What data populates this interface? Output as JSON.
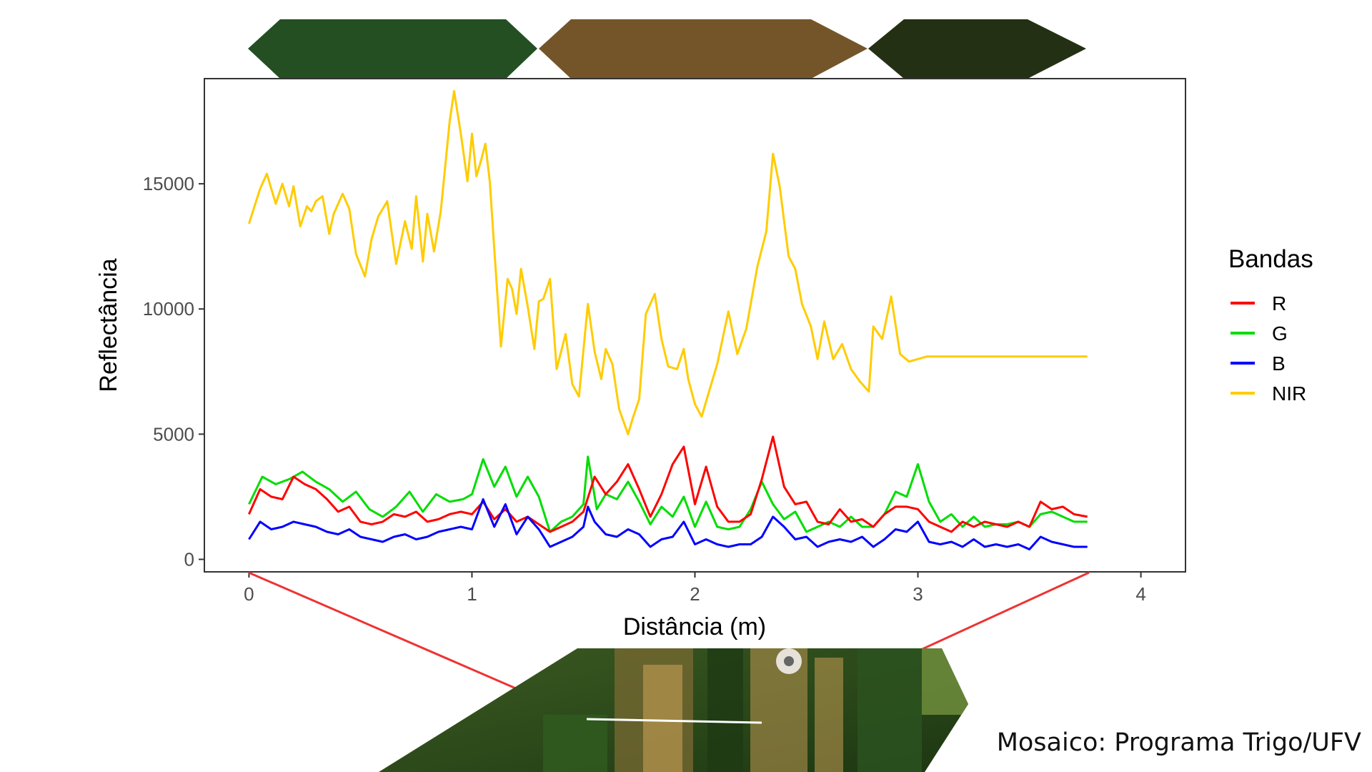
{
  "chart_data": {
    "type": "line",
    "title": "",
    "xlabel": "Distância (m)",
    "ylabel": "Reflectância",
    "xlim": [
      -0.2,
      4.2
    ],
    "ylim": [
      -500,
      19200
    ],
    "x_ticks": [
      0,
      1,
      2,
      3,
      4
    ],
    "y_ticks": [
      0,
      5000,
      10000,
      15000
    ],
    "grid": false,
    "legend": {
      "title": "Bandas",
      "placement": "right"
    },
    "colors": {
      "R": "#ff0000",
      "G": "#00dd00",
      "B": "#0000ff",
      "NIR": "#ffcc00"
    },
    "series": [
      {
        "name": "NIR",
        "x": [
          0,
          0.05,
          0.08,
          0.12,
          0.15,
          0.18,
          0.2,
          0.23,
          0.26,
          0.28,
          0.3,
          0.33,
          0.36,
          0.38,
          0.42,
          0.45,
          0.48,
          0.52,
          0.55,
          0.58,
          0.62,
          0.66,
          0.7,
          0.73,
          0.75,
          0.78,
          0.8,
          0.83,
          0.86,
          0.9,
          0.92,
          0.95,
          0.98,
          1.0,
          1.02,
          1.04,
          1.06,
          1.08,
          1.1,
          1.13,
          1.16,
          1.18,
          1.2,
          1.22,
          1.25,
          1.28,
          1.3,
          1.32,
          1.35,
          1.38,
          1.42,
          1.45,
          1.48,
          1.52,
          1.55,
          1.58,
          1.6,
          1.63,
          1.66,
          1.7,
          1.72,
          1.75,
          1.78,
          1.82,
          1.85,
          1.88,
          1.92,
          1.95,
          1.97,
          2.0,
          2.03,
          2.06,
          2.1,
          2.15,
          2.19,
          2.23,
          2.28,
          2.32,
          2.35,
          2.38,
          2.42,
          2.45,
          2.48,
          2.52,
          2.55,
          2.58,
          2.62,
          2.66,
          2.7,
          2.74,
          2.78,
          2.8,
          2.84,
          2.88,
          2.92,
          2.96,
          3.0,
          3.04,
          3.08,
          3.12,
          3.16,
          3.2,
          3.24,
          3.28,
          3.32,
          3.36,
          3.4,
          3.44,
          3.48,
          3.52,
          3.56,
          3.6,
          3.64,
          3.68,
          3.72,
          3.76
        ],
        "values": [
          13400,
          14800,
          15400,
          14200,
          15000,
          14100,
          14900,
          13300,
          14100,
          13900,
          14300,
          14500,
          13000,
          13800,
          14600,
          14000,
          12200,
          11300,
          12800,
          13700,
          14300,
          11800,
          13500,
          12400,
          14500,
          11900,
          13800,
          12300,
          13900,
          17500,
          18700,
          17000,
          15100,
          17000,
          15300,
          15900,
          16600,
          15100,
          12400,
          8500,
          11200,
          10800,
          9800,
          11600,
          10100,
          8400,
          10300,
          10400,
          11200,
          7600,
          9000,
          7000,
          6500,
          10200,
          8300,
          7200,
          8400,
          7800,
          6000,
          5000,
          5600,
          6400,
          9800,
          10600,
          8800,
          7700,
          7600,
          8400,
          7200,
          6200,
          5700,
          6600,
          7800,
          9900,
          8200,
          9200,
          11700,
          13100,
          16200,
          14900,
          12100,
          11600,
          10200,
          9300,
          8000,
          9500,
          8000,
          8600,
          7600,
          7100,
          6700,
          9300,
          8800,
          10500,
          8200,
          7900,
          8000,
          8100,
          8100,
          8100,
          8100,
          8100,
          8100,
          8100,
          8100,
          8100,
          8100,
          8100,
          8100,
          8100,
          8100,
          8100,
          8100,
          8100,
          8100,
          8100
        ]
      },
      {
        "name": "G",
        "x": [
          0,
          0.06,
          0.12,
          0.18,
          0.24,
          0.3,
          0.36,
          0.42,
          0.48,
          0.54,
          0.6,
          0.66,
          0.72,
          0.78,
          0.84,
          0.9,
          0.96,
          1.0,
          1.05,
          1.1,
          1.15,
          1.2,
          1.25,
          1.3,
          1.35,
          1.4,
          1.45,
          1.5,
          1.52,
          1.56,
          1.6,
          1.65,
          1.7,
          1.75,
          1.8,
          1.85,
          1.9,
          1.95,
          2.0,
          2.05,
          2.1,
          2.15,
          2.2,
          2.25,
          2.3,
          2.35,
          2.4,
          2.45,
          2.5,
          2.55,
          2.6,
          2.65,
          2.7,
          2.75,
          2.8,
          2.85,
          2.9,
          2.95,
          3.0,
          3.05,
          3.1,
          3.15,
          3.2,
          3.25,
          3.3,
          3.35,
          3.4,
          3.45,
          3.5,
          3.55,
          3.6,
          3.65,
          3.7,
          3.76
        ],
        "values": [
          2200,
          3300,
          3000,
          3200,
          3500,
          3100,
          2800,
          2300,
          2700,
          2000,
          1700,
          2100,
          2700,
          1900,
          2600,
          2300,
          2400,
          2600,
          4000,
          2900,
          3700,
          2500,
          3300,
          2500,
          1100,
          1500,
          1700,
          2200,
          4100,
          2000,
          2600,
          2400,
          3100,
          2300,
          1400,
          2100,
          1700,
          2500,
          1300,
          2300,
          1300,
          1200,
          1300,
          2000,
          3100,
          2200,
          1600,
          1900,
          1100,
          1300,
          1500,
          1300,
          1700,
          1300,
          1300,
          1800,
          2700,
          2500,
          3800,
          2300,
          1500,
          1800,
          1300,
          1700,
          1300,
          1400,
          1400,
          1500,
          1300,
          1800,
          1900,
          1700,
          1500,
          1500
        ]
      },
      {
        "name": "R",
        "x": [
          0,
          0.05,
          0.1,
          0.15,
          0.2,
          0.25,
          0.3,
          0.35,
          0.4,
          0.45,
          0.5,
          0.55,
          0.6,
          0.65,
          0.7,
          0.75,
          0.8,
          0.85,
          0.9,
          0.95,
          1.0,
          1.05,
          1.1,
          1.15,
          1.2,
          1.25,
          1.3,
          1.35,
          1.4,
          1.45,
          1.5,
          1.55,
          1.6,
          1.65,
          1.7,
          1.75,
          1.8,
          1.85,
          1.9,
          1.95,
          2.0,
          2.05,
          2.1,
          2.15,
          2.2,
          2.25,
          2.3,
          2.35,
          2.4,
          2.45,
          2.5,
          2.55,
          2.6,
          2.65,
          2.7,
          2.75,
          2.8,
          2.85,
          2.9,
          2.95,
          3.0,
          3.05,
          3.1,
          3.15,
          3.2,
          3.25,
          3.3,
          3.35,
          3.4,
          3.45,
          3.5,
          3.55,
          3.6,
          3.65,
          3.7,
          3.76
        ],
        "values": [
          1800,
          2800,
          2500,
          2400,
          3300,
          3000,
          2800,
          2400,
          1900,
          2100,
          1500,
          1400,
          1500,
          1800,
          1700,
          1900,
          1500,
          1600,
          1800,
          1900,
          1800,
          2300,
          1600,
          2000,
          1500,
          1700,
          1400,
          1100,
          1300,
          1500,
          1900,
          3300,
          2600,
          3100,
          3800,
          2800,
          1700,
          2600,
          3800,
          4500,
          2200,
          3700,
          2100,
          1500,
          1500,
          1800,
          3200,
          4900,
          2900,
          2200,
          2300,
          1500,
          1400,
          2000,
          1500,
          1600,
          1300,
          1800,
          2100,
          2100,
          2000,
          1500,
          1300,
          1100,
          1500,
          1300,
          1500,
          1400,
          1300,
          1500,
          1300,
          2300,
          2000,
          2100,
          1800,
          1700
        ]
      },
      {
        "name": "B",
        "x": [
          0,
          0.05,
          0.1,
          0.15,
          0.2,
          0.25,
          0.3,
          0.35,
          0.4,
          0.45,
          0.5,
          0.55,
          0.6,
          0.65,
          0.7,
          0.75,
          0.8,
          0.85,
          0.9,
          0.95,
          1.0,
          1.05,
          1.1,
          1.15,
          1.2,
          1.25,
          1.3,
          1.35,
          1.4,
          1.45,
          1.5,
          1.52,
          1.55,
          1.6,
          1.65,
          1.7,
          1.75,
          1.8,
          1.85,
          1.9,
          1.95,
          2.0,
          2.05,
          2.1,
          2.15,
          2.2,
          2.25,
          2.3,
          2.35,
          2.4,
          2.45,
          2.5,
          2.55,
          2.6,
          2.65,
          2.7,
          2.75,
          2.8,
          2.85,
          2.9,
          2.95,
          3.0,
          3.05,
          3.1,
          3.15,
          3.2,
          3.25,
          3.3,
          3.35,
          3.4,
          3.45,
          3.5,
          3.55,
          3.6,
          3.65,
          3.7,
          3.76
        ],
        "values": [
          800,
          1500,
          1200,
          1300,
          1500,
          1400,
          1300,
          1100,
          1000,
          1200,
          900,
          800,
          700,
          900,
          1000,
          800,
          900,
          1100,
          1200,
          1300,
          1200,
          2400,
          1300,
          2200,
          1000,
          1700,
          1200,
          500,
          700,
          900,
          1300,
          2100,
          1500,
          1000,
          900,
          1200,
          1000,
          500,
          800,
          900,
          1500,
          600,
          800,
          600,
          500,
          600,
          600,
          900,
          1700,
          1300,
          800,
          900,
          500,
          700,
          800,
          700,
          900,
          500,
          800,
          1200,
          1100,
          1500,
          700,
          600,
          700,
          500,
          800,
          500,
          600,
          500,
          600,
          400,
          900,
          700,
          600,
          500,
          500
        ]
      }
    ],
    "annotations": {
      "caption": "Mosaico: Programa Trigo/UFV"
    }
  },
  "header_bands": {
    "colors": [
      "#234f23",
      "#74552a",
      "#243013"
    ]
  },
  "mosaic": {
    "colors": {
      "frame": "#3d5a22",
      "dark": "#1e3a14",
      "straw": "#b8954f",
      "sky": "#6b8a3a",
      "transect": "#ffffff",
      "connector": "#ee3333"
    }
  }
}
